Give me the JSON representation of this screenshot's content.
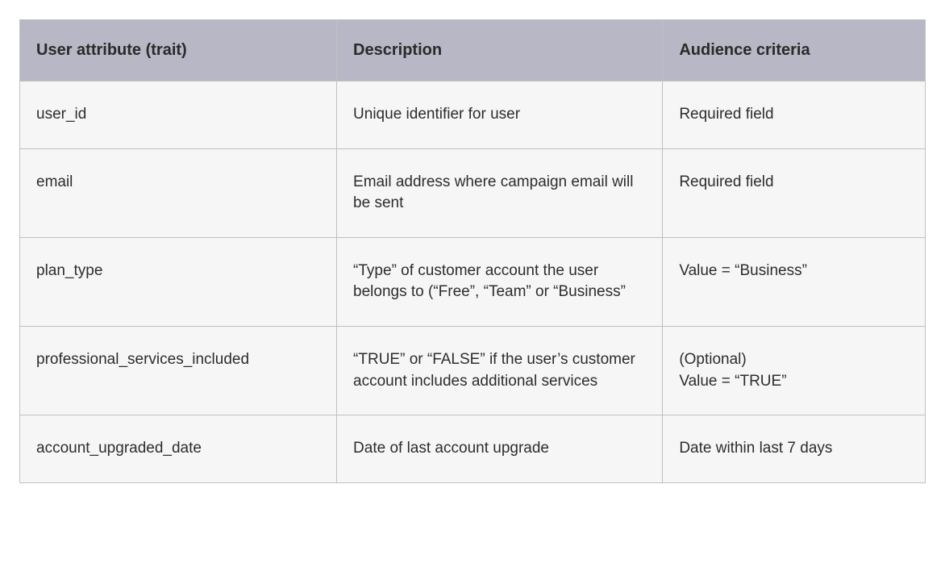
{
  "table": {
    "type": "table",
    "background_color": "#ffffff",
    "row_background_color": "#f6f6f6",
    "header_background_color": "#b7b7c5",
    "border_color": "#c0c0c0",
    "header_text_color": "#2a2a2a",
    "body_text_color": "#2d2d2d",
    "header_fontsize": 20,
    "body_fontsize": 19,
    "header_fontweight": 700,
    "column_widths_pct": [
      35,
      36,
      29
    ],
    "columns": [
      "User attribute (trait)",
      "Description",
      "Audience criteria"
    ],
    "rows": [
      {
        "attribute": "user_id",
        "description": "Unique identifier for user",
        "criteria": "Required field"
      },
      {
        "attribute": "email",
        "description": "Email address where campaign email will be sent",
        "criteria": "Required field"
      },
      {
        "attribute": "plan_type",
        "description": "“Type” of customer account the user belongs to (“Free”, “Team” or “Business”",
        "criteria": "Value = “Business”"
      },
      {
        "attribute": "professional_services_included",
        "description": "“TRUE” or “FALSE” if the user’s customer account includes additional services",
        "criteria": "(Optional)\nValue = “TRUE”"
      },
      {
        "attribute": "account_upgraded_date",
        "description": "Date of last account upgrade",
        "criteria": "Date within last 7 days"
      }
    ]
  }
}
